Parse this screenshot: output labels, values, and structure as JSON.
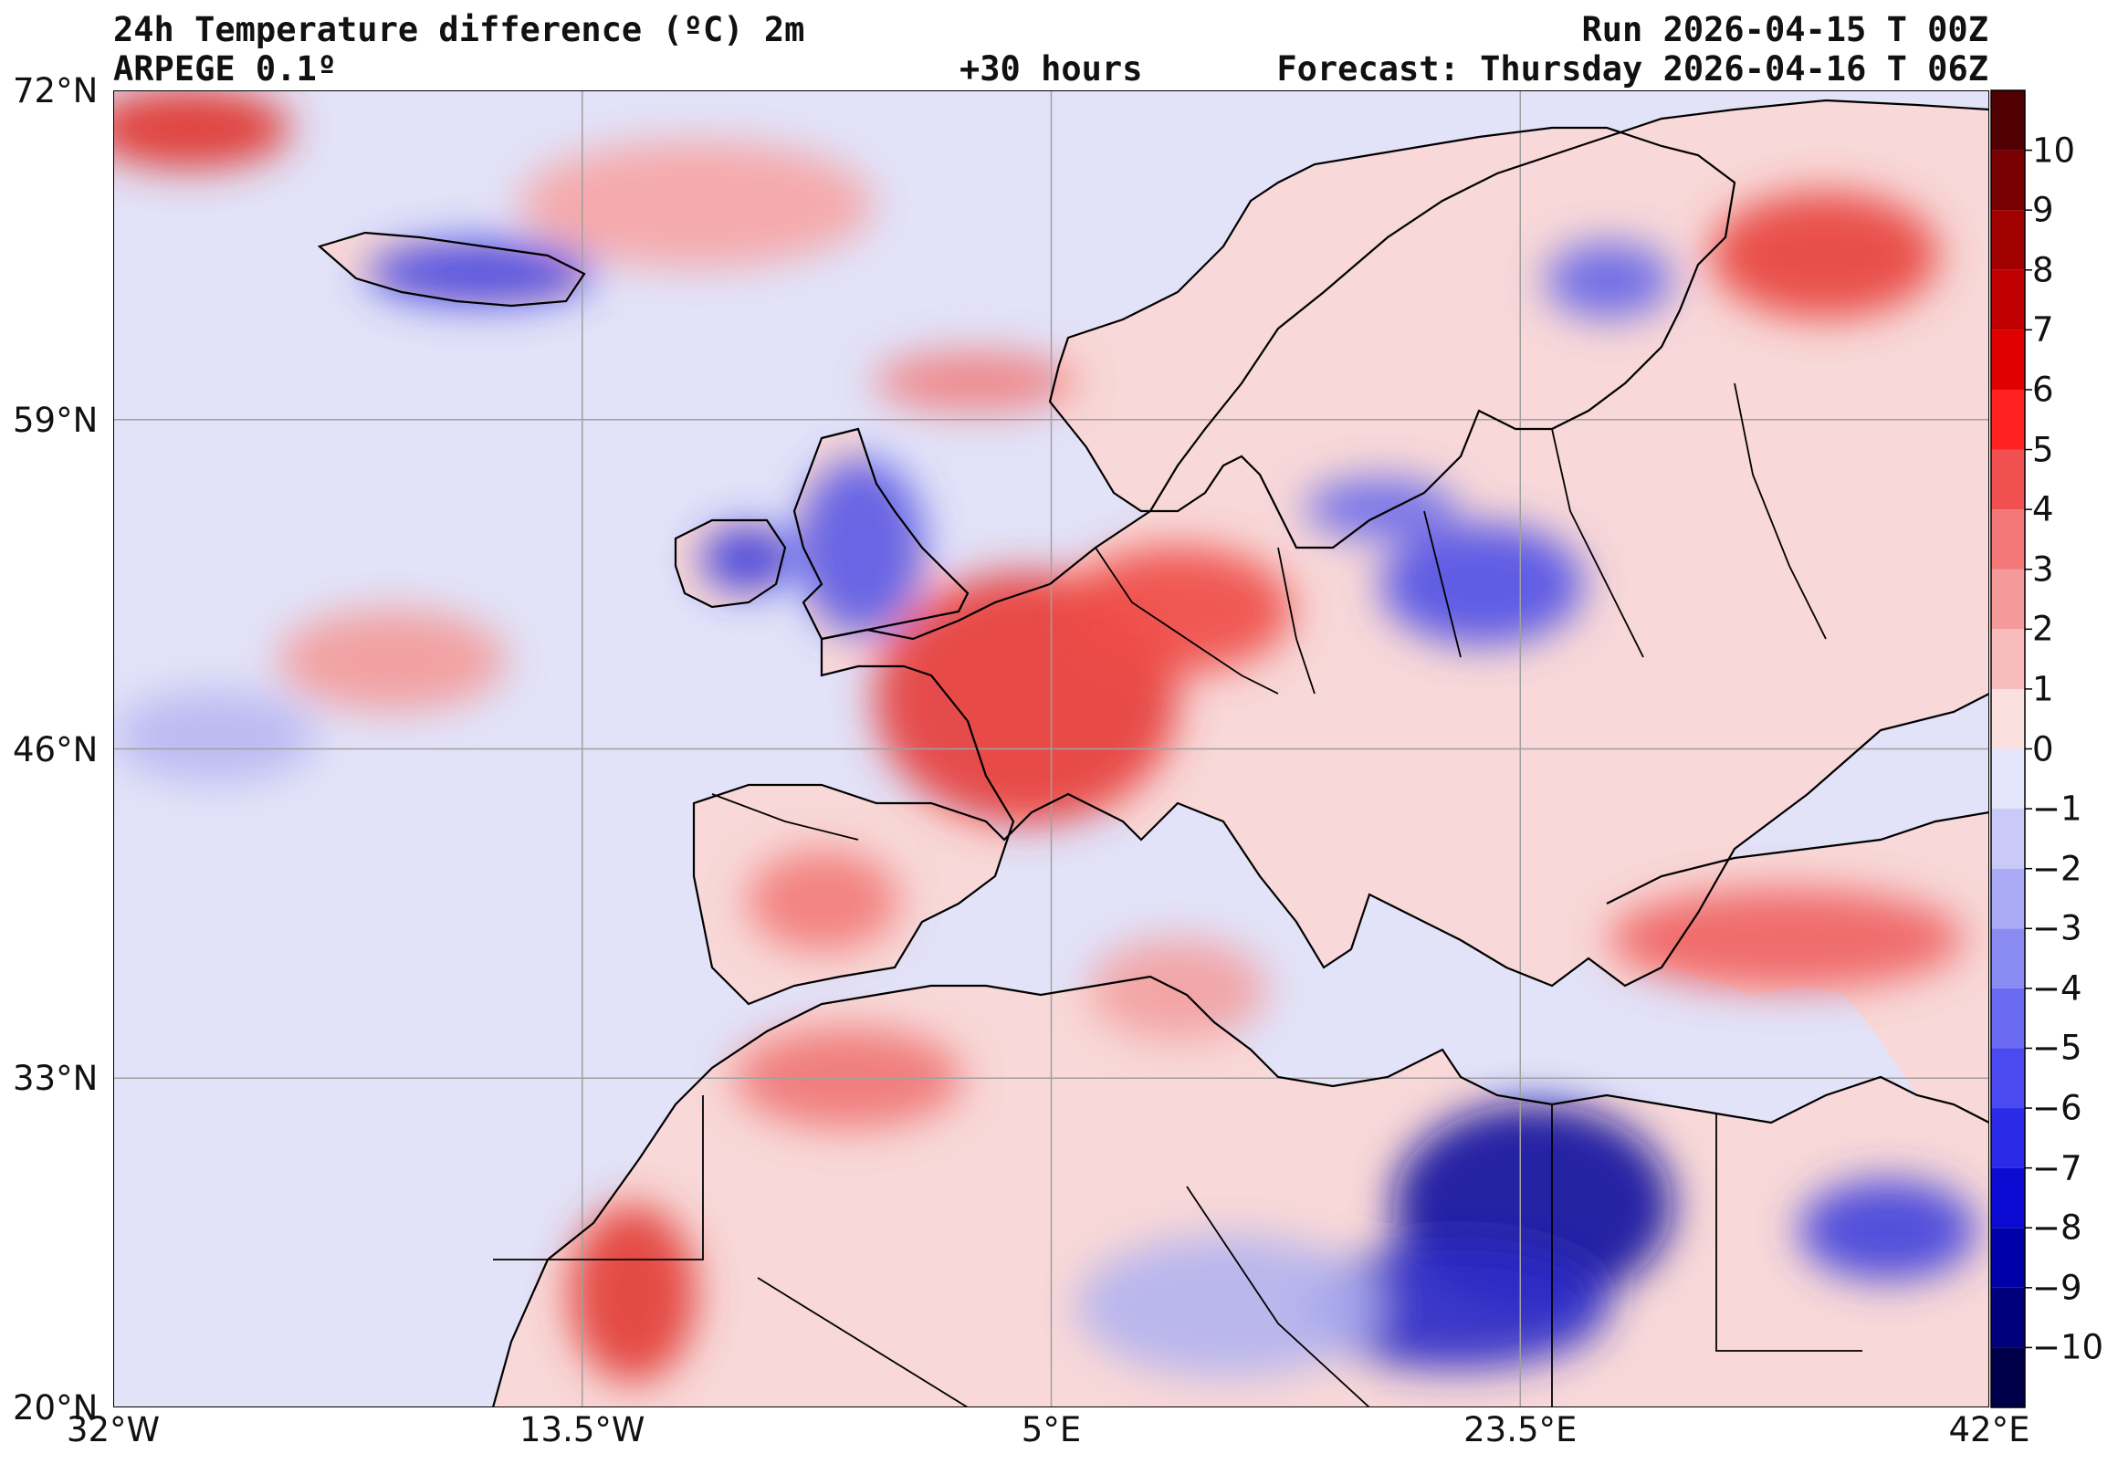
{
  "header": {
    "title": "24h Temperature difference (ºC) 2m",
    "model": "ARPEGE 0.1º",
    "lead": "+30 hours",
    "run": "Run 2026-04-15 T 00Z",
    "forecast": "Forecast: Thursday 2026-04-16 T 06Z"
  },
  "map": {
    "lon_range": [
      -32,
      42
    ],
    "lat_range": [
      20,
      72
    ],
    "lat_labels": [
      "72°N",
      "59°N",
      "46°N",
      "33°N",
      "20°N"
    ],
    "lat_values": [
      72,
      59,
      46,
      33,
      20
    ],
    "lon_labels": [
      "32°W",
      "13.5°W",
      "5°E",
      "23.5°E",
      "42°E"
    ],
    "lon_values": [
      -32,
      -13.5,
      5,
      23.5,
      42
    ],
    "land_color": "#f8d8d8",
    "ocean_color": "#e2e2f8",
    "blobs": [
      {
        "lon": -29,
        "lat": 70.5,
        "rlon": 4,
        "rlat": 1.6,
        "color": "#e0302a"
      },
      {
        "lon": -17.5,
        "lat": 64.8,
        "rlon": 4.5,
        "rlat": 1.3,
        "color": "#4646e0"
      },
      {
        "lon": -7,
        "lat": 53.5,
        "rlon": 1.8,
        "rlat": 1.3,
        "color": "#3c3cdc"
      },
      {
        "lon": -2.5,
        "lat": 54,
        "rlon": 2.5,
        "rlat": 3.5,
        "color": "#5a5ae6"
      },
      {
        "lon": 4,
        "lat": 48,
        "rlon": 6,
        "rlat": 5,
        "color": "#e63b37"
      },
      {
        "lon": 10,
        "lat": 51.5,
        "rlon": 4.5,
        "rlat": 2.5,
        "color": "#f04a46"
      },
      {
        "lon": 22,
        "lat": 52.5,
        "rlon": 4,
        "rlat": 2.4,
        "color": "#5050e6"
      },
      {
        "lon": 18,
        "lat": 55.5,
        "rlon": 3,
        "rlat": 1.2,
        "color": "#6868ea"
      },
      {
        "lon": 27,
        "lat": 64.5,
        "rlon": 2.5,
        "rlat": 1.5,
        "color": "#6464e8"
      },
      {
        "lon": 35.5,
        "lat": 65.5,
        "rlon": 4.5,
        "rlat": 2.5,
        "color": "#e8403c"
      },
      {
        "lon": 24,
        "lat": 28,
        "rlon": 5.5,
        "rlat": 4,
        "color": "#0b0b9e"
      },
      {
        "lon": 21,
        "lat": 24,
        "rlon": 6,
        "rlat": 2.5,
        "color": "#2828c8"
      },
      {
        "lon": -11.5,
        "lat": 24.5,
        "rlon": 2.5,
        "rlat": 3.5,
        "color": "#e23a34"
      },
      {
        "lon": 38,
        "lat": 27,
        "rlon": 3.5,
        "rlat": 2,
        "color": "#4141dc"
      },
      {
        "lon": 34,
        "lat": 38.5,
        "rlon": 7,
        "rlat": 2,
        "color": "#f06060"
      },
      {
        "lon": -4,
        "lat": 40,
        "rlon": 3,
        "rlat": 2,
        "color": "#f27a78"
      },
      {
        "lon": -21,
        "lat": 49.5,
        "rlon": 4.5,
        "rlat": 2,
        "color": "#f49a98"
      },
      {
        "lon": -9,
        "lat": 67.5,
        "rlon": 7,
        "rlat": 2.5,
        "color": "#f7a4a4"
      },
      {
        "lon": 2,
        "lat": 60.5,
        "rlon": 4,
        "rlat": 1.2,
        "color": "#f08080"
      },
      {
        "lon": -28,
        "lat": 46.5,
        "rlon": 4,
        "rlat": 1.8,
        "color": "#b7b7f2"
      },
      {
        "lon": 12,
        "lat": 24,
        "rlon": 6,
        "rlat": 2.8,
        "color": "#b4b4f0"
      },
      {
        "lon": 10,
        "lat": 36.5,
        "rlon": 3.5,
        "rlat": 2,
        "color": "#f3a0a0"
      },
      {
        "lon": -3,
        "lat": 33,
        "rlon": 4.5,
        "rlat": 2,
        "color": "#f07674"
      }
    ]
  },
  "colorbar": {
    "labels": [
      "10",
      "9",
      "8",
      "7",
      "6",
      "5",
      "4",
      "3",
      "2",
      "1",
      "0",
      "−1",
      "−2",
      "−3",
      "−4",
      "−5",
      "−6",
      "−7",
      "−8",
      "−9",
      "−10"
    ],
    "values": [
      10,
      9,
      8,
      7,
      6,
      5,
      4,
      3,
      2,
      1,
      0,
      -1,
      -2,
      -3,
      -4,
      -5,
      -6,
      -7,
      -8,
      -9,
      -10
    ],
    "range": [
      -11,
      11
    ],
    "colors": [
      "#00004a",
      "#00007a",
      "#0000a8",
      "#0a0ad2",
      "#2a2ae8",
      "#4a4af0",
      "#6a6af2",
      "#8b8bf4",
      "#aaaaf6",
      "#cacaf8",
      "#e4e4fa",
      "#fbe0e0",
      "#f8bcbc",
      "#f59a9a",
      "#f27878",
      "#f05050",
      "#ff2020",
      "#e00000",
      "#c00000",
      "#a00000",
      "#780000",
      "#500000"
    ]
  }
}
